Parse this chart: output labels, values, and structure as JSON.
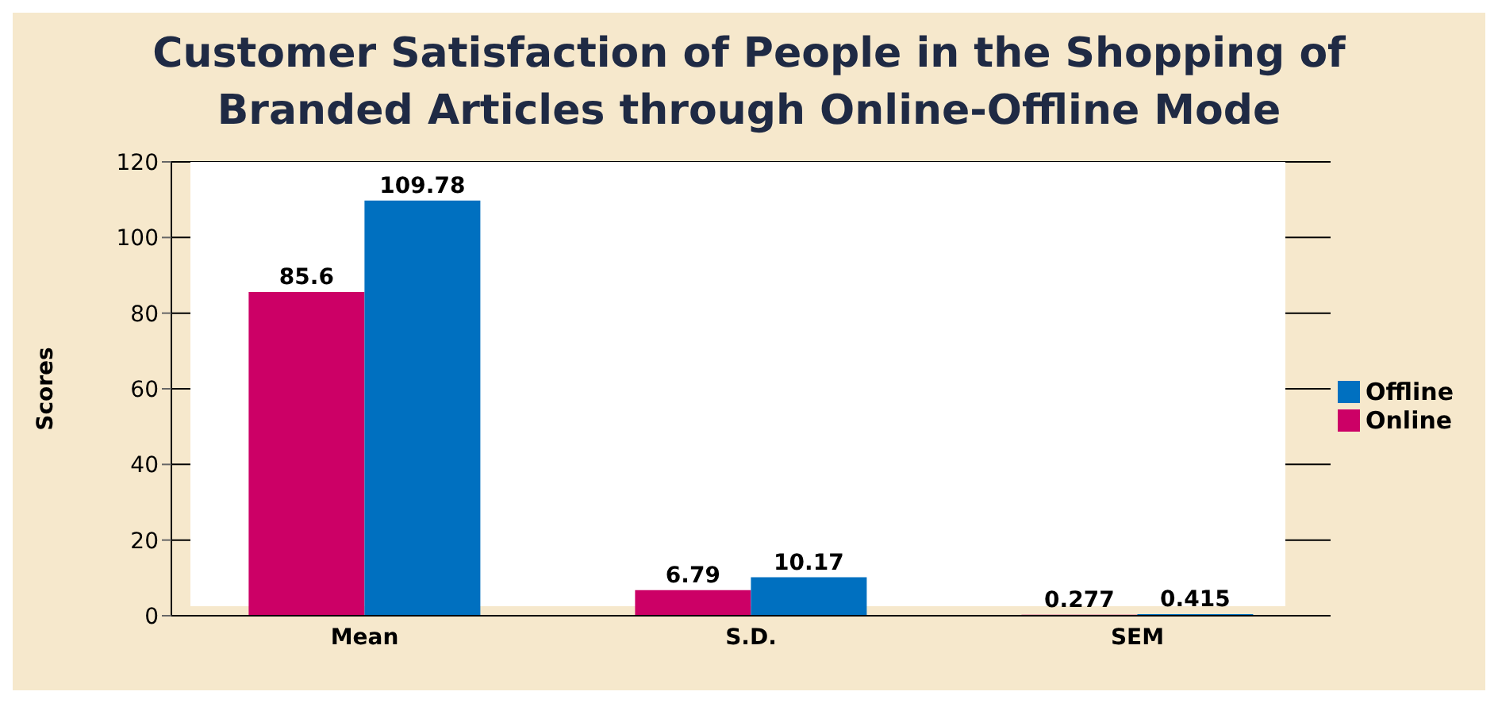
{
  "chart_data": {
    "type": "bar",
    "title": "Customer Satisfaction of People in the Shopping of Branded Articles through Online-Offline Mode",
    "ylabel": "Scores",
    "categories": [
      "Mean",
      "S.D.",
      "SEM"
    ],
    "series": [
      {
        "name": "Online",
        "color": "#cc0066",
        "values": [
          85.6,
          6.79,
          0.277
        ]
      },
      {
        "name": "Offline",
        "color": "#0070c0",
        "values": [
          109.78,
          10.17,
          0.415
        ]
      }
    ],
    "ylim": [
      0,
      120
    ],
    "yticks": [
      0,
      20,
      40,
      60,
      80,
      100,
      120
    ],
    "grid": "y",
    "legend": "right",
    "data_labels": true
  }
}
